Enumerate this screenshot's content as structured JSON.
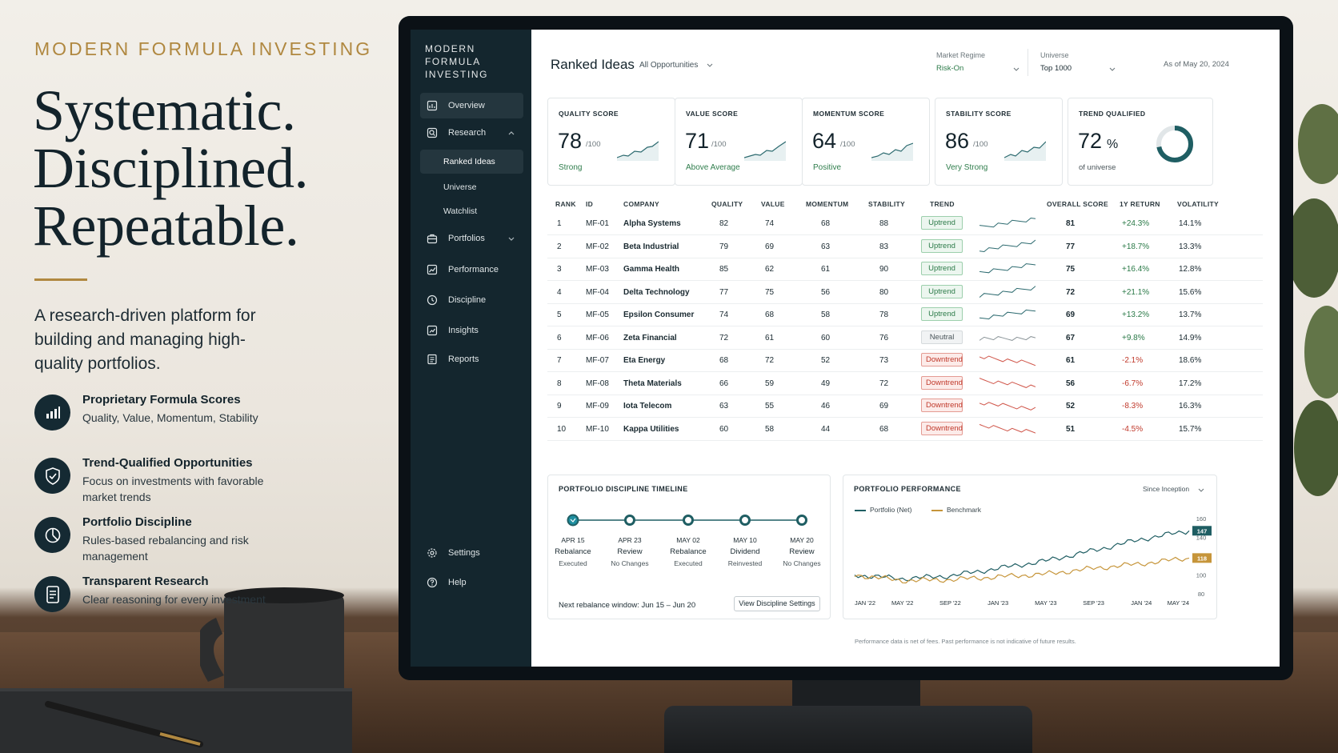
{
  "hero": {
    "eyebrow": "MODERN FORMULA INVESTING",
    "title_lines": [
      "Systematic.",
      "Disciplined.",
      "Repeatable."
    ],
    "description": "A research-driven platform for building and managing high-quality portfolios.",
    "features": [
      {
        "icon": "bar-chart-icon",
        "title": "Proprietary Formula Scores",
        "desc": "Quality, Value, Momentum, Stability"
      },
      {
        "icon": "shield-check-icon",
        "title": "Trend-Qualified Opportunities",
        "desc": "Focus on investments with favorable market trends"
      },
      {
        "icon": "pie-clock-icon",
        "title": "Portfolio Discipline",
        "desc": "Rules-based rebalancing and risk management"
      },
      {
        "icon": "document-icon",
        "title": "Transparent Research",
        "desc": "Clear reasoning for every investment"
      }
    ]
  },
  "app": {
    "logo_lines": [
      "MODERN",
      "FORMULA",
      "INVESTING"
    ],
    "nav": {
      "overview": "Overview",
      "research": "Research",
      "ranked_ideas": "Ranked Ideas",
      "universe": "Universe",
      "watchlist": "Watchlist",
      "portfolios": "Portfolios",
      "performance": "Performance",
      "discipline": "Discipline",
      "insights": "Insights",
      "reports": "Reports",
      "settings": "Settings",
      "help": "Help"
    },
    "header": {
      "title": "Ranked Ideas",
      "view_select": "All Opportunities",
      "market_regime_label": "Market Regime",
      "market_regime_value": "Risk-On",
      "universe_label": "Universe",
      "universe_value": "Top 1000",
      "as_of": "As of May 20, 2024"
    },
    "cards": [
      {
        "label": "QUALITY SCORE",
        "value": "78",
        "suffix": "/100",
        "status": "Strong"
      },
      {
        "label": "VALUE SCORE",
        "value": "71",
        "suffix": "/100",
        "status": "Above Average"
      },
      {
        "label": "MOMENTUM SCORE",
        "value": "64",
        "suffix": "/100",
        "status": "Positive"
      },
      {
        "label": "STABILITY SCORE",
        "value": "86",
        "suffix": "/100",
        "status": "Very Strong"
      },
      {
        "label": "TREND QUALIFIED",
        "value": "72",
        "suffix": "%",
        "status": "of universe",
        "fraction": 0.72
      }
    ],
    "table": {
      "headers": [
        "RANK",
        "ID",
        "COMPANY",
        "QUALITY",
        "VALUE",
        "MOMENTUM",
        "STABILITY",
        "TREND",
        "OVERALL SCORE",
        "1Y RETURN",
        "VOLATILITY"
      ],
      "rows": [
        {
          "rank": "1",
          "id": "MF-01",
          "company": "Alpha Systems",
          "quality": "82",
          "value": "74",
          "momentum": "68",
          "stability": "88",
          "trend": "Uptrend",
          "overall": "81",
          "ret": "+24.3%",
          "vol": "14.1%"
        },
        {
          "rank": "2",
          "id": "MF-02",
          "company": "Beta Industrial",
          "quality": "79",
          "value": "69",
          "momentum": "63",
          "stability": "83",
          "trend": "Uptrend",
          "overall": "77",
          "ret": "+18.7%",
          "vol": "13.3%"
        },
        {
          "rank": "3",
          "id": "MF-03",
          "company": "Gamma Health",
          "quality": "85",
          "value": "62",
          "momentum": "61",
          "stability": "90",
          "trend": "Uptrend",
          "overall": "75",
          "ret": "+16.4%",
          "vol": "12.8%"
        },
        {
          "rank": "4",
          "id": "MF-04",
          "company": "Delta Technology",
          "quality": "77",
          "value": "75",
          "momentum": "56",
          "stability": "80",
          "trend": "Uptrend",
          "overall": "72",
          "ret": "+21.1%",
          "vol": "15.6%"
        },
        {
          "rank": "5",
          "id": "MF-05",
          "company": "Epsilon Consumer",
          "quality": "74",
          "value": "68",
          "momentum": "58",
          "stability": "78",
          "trend": "Uptrend",
          "overall": "69",
          "ret": "+13.2%",
          "vol": "13.7%"
        },
        {
          "rank": "6",
          "id": "MF-06",
          "company": "Zeta Financial",
          "quality": "72",
          "value": "61",
          "momentum": "60",
          "stability": "76",
          "trend": "Neutral",
          "overall": "67",
          "ret": "+9.8%",
          "vol": "14.9%"
        },
        {
          "rank": "7",
          "id": "MF-07",
          "company": "Eta Energy",
          "quality": "68",
          "value": "72",
          "momentum": "52",
          "stability": "73",
          "trend": "Downtrend",
          "overall": "61",
          "ret": "-2.1%",
          "vol": "18.6%"
        },
        {
          "rank": "8",
          "id": "MF-08",
          "company": "Theta Materials",
          "quality": "66",
          "value": "59",
          "momentum": "49",
          "stability": "72",
          "trend": "Downtrend",
          "overall": "56",
          "ret": "-6.7%",
          "vol": "17.2%"
        },
        {
          "rank": "9",
          "id": "MF-09",
          "company": "Iota Telecom",
          "quality": "63",
          "value": "55",
          "momentum": "46",
          "stability": "69",
          "trend": "Downtrend",
          "overall": "52",
          "ret": "-8.3%",
          "vol": "16.3%"
        },
        {
          "rank": "10",
          "id": "MF-10",
          "company": "Kappa Utilities",
          "quality": "60",
          "value": "58",
          "momentum": "44",
          "stability": "68",
          "trend": "Downtrend",
          "overall": "51",
          "ret": "-4.5%",
          "vol": "15.7%"
        }
      ]
    },
    "timeline": {
      "title": "PORTFOLIO DISCIPLINE TIMELINE",
      "steps": [
        {
          "date": "APR 15",
          "name": "Rebalance",
          "status": "Executed"
        },
        {
          "date": "APR 23",
          "name": "Review",
          "status": "No Changes"
        },
        {
          "date": "MAY 02",
          "name": "Rebalance",
          "status": "Executed"
        },
        {
          "date": "MAY 10",
          "name": "Dividend",
          "status": "Reinvested"
        },
        {
          "date": "MAY 20",
          "name": "Review",
          "status": "No Changes"
        }
      ],
      "next_rebalance": "Next rebalance window: Jun 15 – Jun 20",
      "button": "View Discipline Settings"
    },
    "performance": {
      "title": "PORTFOLIO PERFORMANCE",
      "range_select": "Since Inception",
      "disclaimer": "Performance data is net of fees. Past performance is not indicative of future results."
    },
    "colors": {
      "sidebar": "#14262e",
      "accent_gold": "#b08840",
      "teal": "#1f5e63",
      "positive": "#2b7a48",
      "negative": "#c0392b"
    }
  },
  "chart_data": {
    "type": "line",
    "title": "PORTFOLIO PERFORMANCE",
    "x": [
      "JAN '22",
      "MAY '22",
      "SEP '22",
      "JAN '23",
      "MAY '23",
      "SEP '23",
      "JAN '24",
      "MAY '24"
    ],
    "series": [
      {
        "name": "Portfolio (Net)",
        "color": "#1f5e63",
        "values": [
          100,
          96,
          99,
          107,
          115,
          126,
          138,
          147
        ]
      },
      {
        "name": "Benchmark",
        "color": "#c6953a",
        "values": [
          100,
          94,
          95,
          98,
          101,
          107,
          112,
          118
        ]
      }
    ],
    "ylim": [
      80,
      160
    ],
    "yticks": [
      "160",
      "140",
      "120",
      "100",
      "80"
    ],
    "end_labels": [
      "147",
      "118"
    ],
    "legend": "top-left"
  }
}
